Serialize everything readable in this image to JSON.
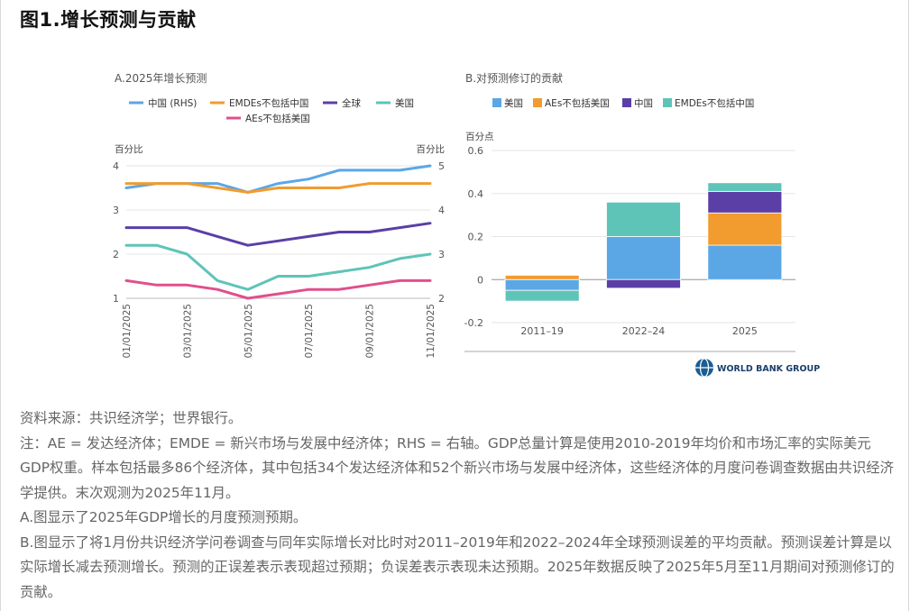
{
  "page": {
    "title": "图1.增长预测与贡献"
  },
  "chart_data": [
    {
      "type": "line",
      "title": "A.2025年增长预测",
      "ylabel_left": "百分比",
      "ylabel_right": "百分比",
      "ylim_left": [
        1,
        4
      ],
      "ylim_right": [
        2,
        5
      ],
      "yticks_left": [
        "1",
        "2",
        "3",
        "4"
      ],
      "yticks_right": [
        "2",
        "3",
        "4",
        "5"
      ],
      "x": [
        "01/2025",
        "02/2025",
        "03/2025",
        "04/2025",
        "05/2025",
        "06/2025",
        "07/2025",
        "08/2025",
        "09/2025",
        "10/2025",
        "11/2025"
      ],
      "xtick_labels": [
        "01/01/2025",
        "03/01/2025",
        "05/01/2025",
        "07/01/2025",
        "09/01/2025",
        "11/01/2025"
      ],
      "series": [
        {
          "name": "中国 (RHS)",
          "axis": "right",
          "color": "#5ba7e6",
          "values": [
            4.5,
            4.6,
            4.6,
            4.6,
            4.4,
            4.6,
            4.7,
            4.9,
            4.9,
            4.9,
            5.0
          ]
        },
        {
          "name": "EMDEs不包括中国",
          "axis": "left",
          "color": "#f29b2e",
          "values": [
            3.6,
            3.6,
            3.6,
            3.5,
            3.4,
            3.5,
            3.5,
            3.5,
            3.6,
            3.6,
            3.6
          ]
        },
        {
          "name": "全球",
          "axis": "left",
          "color": "#5b3fa6",
          "values": [
            2.6,
            2.6,
            2.6,
            2.4,
            2.2,
            2.3,
            2.4,
            2.5,
            2.5,
            2.6,
            2.7
          ]
        },
        {
          "name": "美国",
          "axis": "left",
          "color": "#5ec4b8",
          "values": [
            2.2,
            2.2,
            2.0,
            1.4,
            1.2,
            1.5,
            1.5,
            1.6,
            1.7,
            1.9,
            2.0
          ]
        },
        {
          "name": "AEs不包括美国",
          "axis": "left",
          "color": "#e0508a",
          "values": [
            1.4,
            1.3,
            1.3,
            1.2,
            1.0,
            1.1,
            1.2,
            1.2,
            1.3,
            1.4,
            1.4
          ]
        }
      ]
    },
    {
      "type": "bar",
      "stacked": true,
      "title": "B.对预测修订的贡献",
      "ylabel": "百分点",
      "ylim": [
        -0.2,
        0.6
      ],
      "yticks": [
        "-0.2",
        "0",
        "0.2",
        "0.4",
        "0.6"
      ],
      "categories": [
        "2011–19",
        "2022–24",
        "2025"
      ],
      "series": [
        {
          "name": "美国",
          "color": "#5ba7e6",
          "values": [
            -0.05,
            0.2,
            0.16
          ]
        },
        {
          "name": "AEs不包括美国",
          "color": "#f29b2e",
          "values": [
            0.02,
            0,
            0.15
          ]
        },
        {
          "name": "中国",
          "color": "#5b3fa6",
          "values": [
            0,
            -0.04,
            0.1
          ]
        },
        {
          "name": "EMDEs不包括中国",
          "color": "#5ec4b8",
          "values": [
            -0.05,
            0.16,
            0.04
          ]
        }
      ],
      "logo_text": "WORLD BANK GROUP"
    }
  ],
  "notes": {
    "source": "资料来源：共识经济学；世界银行。",
    "note": "注：AE = 发达经济体；EMDE = 新兴市场与发展中经济体；RHS = 右轴。GDP总量计算是使用2010-2019年均价和市场汇率的实际美元GDP权重。样本包括最多86个经济体，其中包括34个发达经济体和52个新兴市场与发展中经济体，这些经济体的月度问卷调查数据由共识经济学提供。末次观测为2025年11月。",
    "a": "A.图显示了2025年GDP增长的月度预测预期。",
    "b": "B.图显示了将1月份共识经济学问卷调查与同年实际增长对比时对2011–2019年和2022–2024年全球预测误差的平均贡献。预测误差计算是以实际增长减去预测增长。预测的正误差表示表现超过预期；负误差表示表现未达预期。2025年数据反映了2025年5月至11月期间对预测修订的贡献。"
  }
}
